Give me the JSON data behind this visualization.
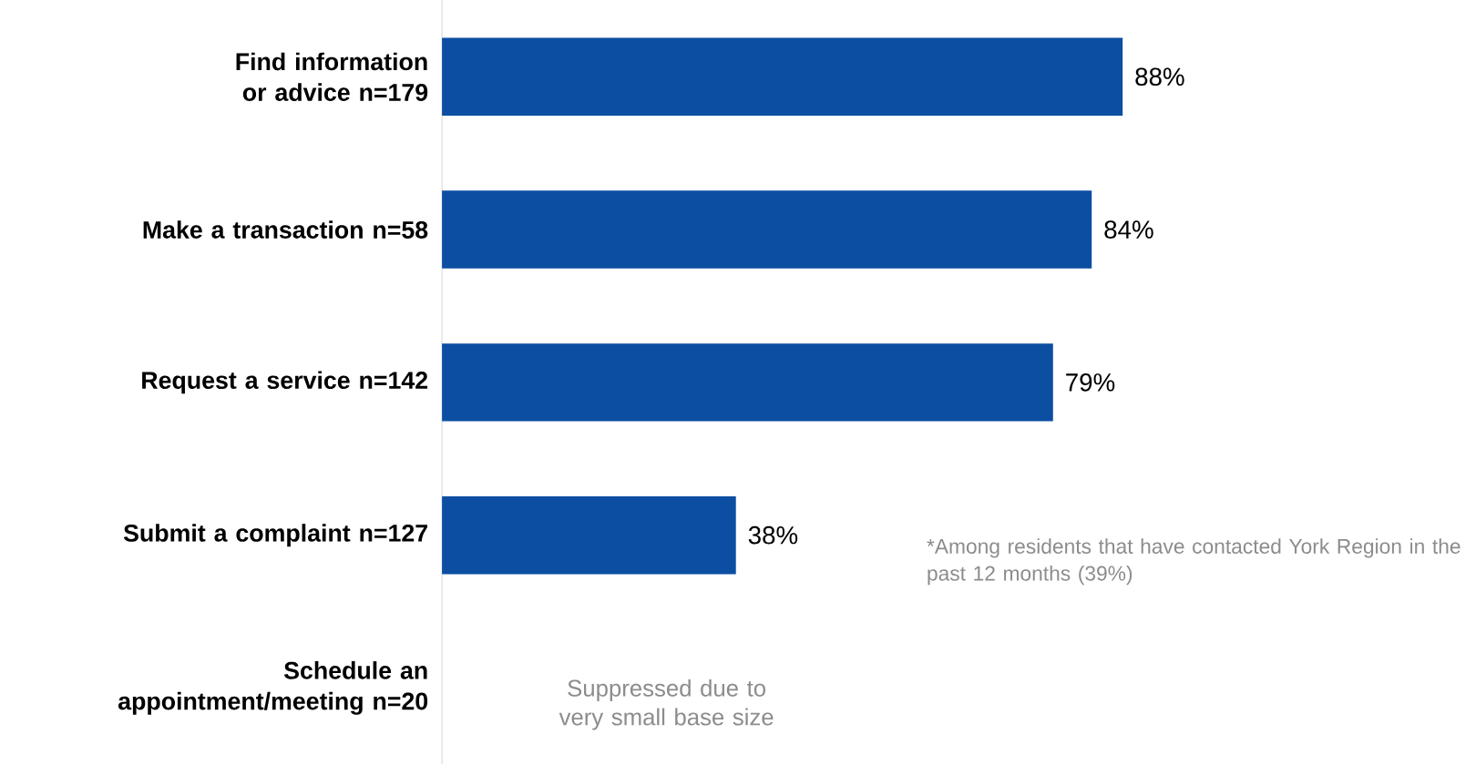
{
  "chart_data": {
    "type": "bar",
    "orientation": "horizontal",
    "categories": [
      "Find information or advice n=179",
      "Make a transaction n=58",
      "Request a service n=142",
      "Submit a complaint n=127",
      "Schedule an appointment/meeting n=20"
    ],
    "values": [
      88,
      84,
      79,
      38,
      null
    ],
    "value_labels": [
      "88%",
      "84%",
      "79%",
      "38%",
      null
    ],
    "color": "#0b4ea2",
    "annotations": [
      "*Among residents that have contacted York Region in the past 12 months (39%)",
      "Suppressed due to very small base size"
    ]
  }
}
